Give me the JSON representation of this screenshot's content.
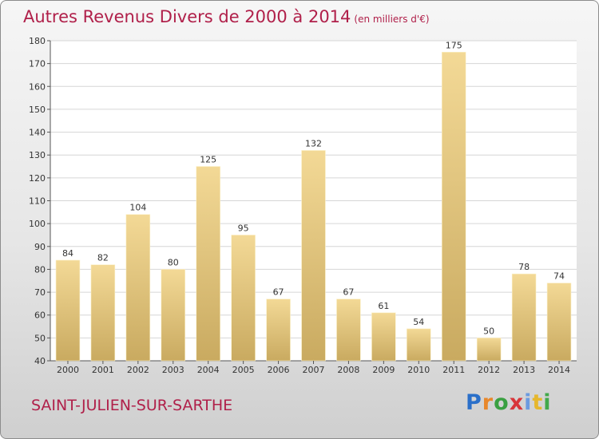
{
  "title": "Autres Revenus Divers de 2000 à 2014",
  "subtitle": "(en milliers d'€)",
  "commune": "SAINT-JULIEN-SUR-SARTHE",
  "logo": [
    "P",
    "r",
    "o",
    "x",
    "i",
    "t",
    "i"
  ],
  "colors": {
    "bar_light": "#f3d996",
    "bar_dark": "#c9aa60",
    "title": "#b0204a",
    "grid": "#d6d6d6"
  },
  "chart_data": {
    "type": "bar",
    "title": "Autres Revenus Divers de 2000 à 2014",
    "subtitle": "(en milliers d'€)",
    "categories": [
      "2000",
      "2001",
      "2002",
      "2003",
      "2004",
      "2005",
      "2006",
      "2007",
      "2008",
      "2009",
      "2010",
      "2011",
      "2012",
      "2013",
      "2014"
    ],
    "values": [
      84,
      82,
      104,
      80,
      125,
      95,
      67,
      132,
      67,
      61,
      54,
      175,
      50,
      78,
      74
    ],
    "ylim": [
      40,
      180
    ],
    "yticks": [
      40,
      50,
      60,
      70,
      80,
      90,
      100,
      110,
      120,
      130,
      140,
      150,
      160,
      170,
      180
    ],
    "grid": true,
    "legend": "none"
  }
}
